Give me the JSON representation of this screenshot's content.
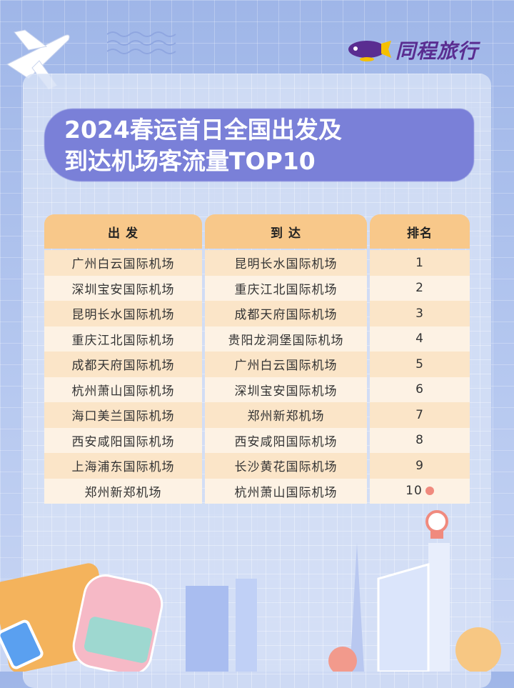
{
  "brand": {
    "name": "同程旅行",
    "colors": {
      "purple": "#5a2d91",
      "yellow": "#f5c000"
    }
  },
  "title": {
    "line1": "2024春运首日全国出发及",
    "line2": "到达机场客流量TOP10"
  },
  "table": {
    "headers": [
      "出 发",
      "到 达",
      "排名"
    ],
    "rows": [
      {
        "departure": "广州白云国际机场",
        "arrival": "昆明长水国际机场",
        "rank": "1"
      },
      {
        "departure": "深圳宝安国际机场",
        "arrival": "重庆江北国际机场",
        "rank": "2"
      },
      {
        "departure": "昆明长水国际机场",
        "arrival": "成都天府国际机场",
        "rank": "3"
      },
      {
        "departure": "重庆江北国际机场",
        "arrival": "贵阳龙洞堡国际机场",
        "rank": "4"
      },
      {
        "departure": "成都天府国际机场",
        "arrival": "广州白云国际机场",
        "rank": "5"
      },
      {
        "departure": "杭州萧山国际机场",
        "arrival": "深圳宝安国际机场",
        "rank": "6"
      },
      {
        "departure": "海口美兰国际机场",
        "arrival": "郑州新郑机场",
        "rank": "7"
      },
      {
        "departure": "西安咸阳国际机场",
        "arrival": "西安咸阳国际机场",
        "rank": "8"
      },
      {
        "departure": "上海浦东国际机场",
        "arrival": "长沙黄花国际机场",
        "rank": "9"
      },
      {
        "departure": "郑州新郑机场",
        "arrival": "杭州萧山国际机场",
        "rank": "10"
      }
    ]
  }
}
